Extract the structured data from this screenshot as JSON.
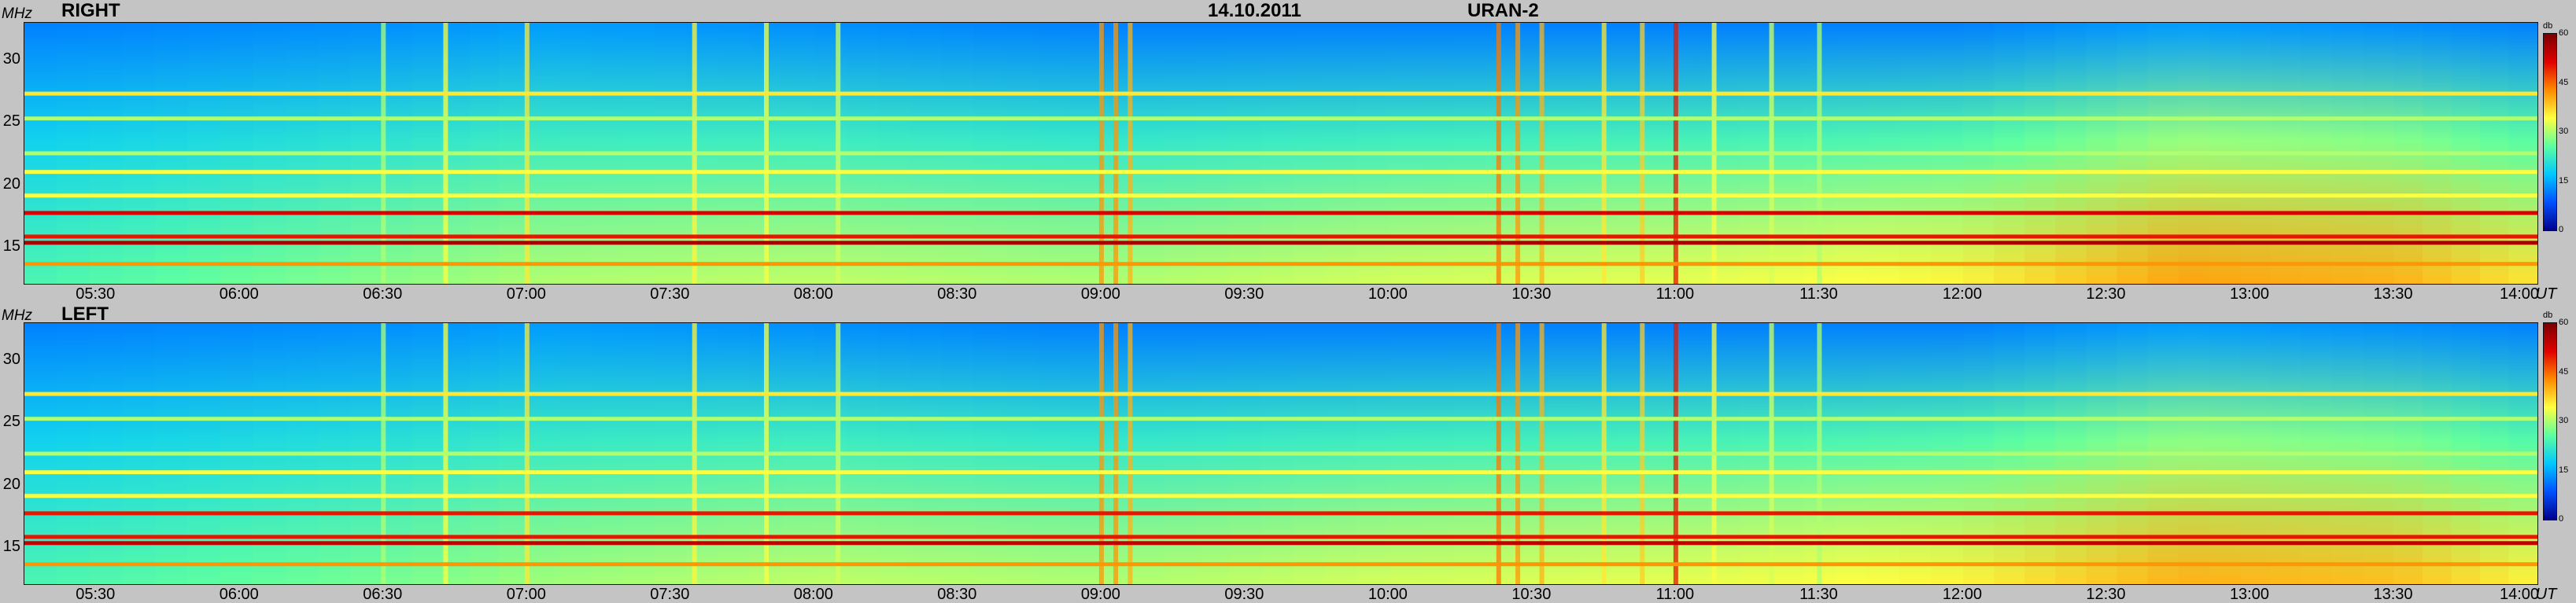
{
  "header": {
    "date": "14.10.2011",
    "instrument": "URAN-2"
  },
  "axis_unit_y": "MHz",
  "axis_unit_x": "UT",
  "colorbar_unit": "db",
  "colorbar_ticks": [
    "60",
    "45",
    "30",
    "15",
    "0"
  ],
  "colorscale": [
    "#00008a",
    "#0050ff",
    "#00c8ff",
    "#5effa0",
    "#ffff40",
    "#ff8a00",
    "#e00000",
    "#7a0000"
  ],
  "chart_data": [
    {
      "type": "heatmap",
      "title": "RIGHT",
      "xlabel": "UT",
      "ylabel": "MHz",
      "xlim": [
        "05:15",
        "14:00"
      ],
      "ylim": [
        12,
        33
      ],
      "zlim": [
        0,
        60
      ],
      "x_ticks": [
        "05:30",
        "06:00",
        "06:30",
        "07:00",
        "07:30",
        "08:00",
        "08:30",
        "09:00",
        "09:30",
        "10:00",
        "10:30",
        "11:00",
        "11:30",
        "12:00",
        "12:30",
        "13:00",
        "13:30",
        "14:00"
      ],
      "y_ticks": [
        15,
        20,
        25,
        30
      ],
      "background_by_time": [
        {
          "time": "05:15",
          "low_db": 24,
          "high_db": 12
        },
        {
          "time": "06:30",
          "low_db": 28,
          "high_db": 13
        },
        {
          "time": "07:00",
          "low_db": 30,
          "high_db": 14
        },
        {
          "time": "08:00",
          "low_db": 31,
          "high_db": 13
        },
        {
          "time": "09:00",
          "low_db": 30,
          "high_db": 12
        },
        {
          "time": "10:00",
          "low_db": 32,
          "high_db": 12
        },
        {
          "time": "11:00",
          "low_db": 33,
          "high_db": 12
        },
        {
          "time": "12:00",
          "low_db": 35,
          "high_db": 12
        },
        {
          "time": "12:45",
          "low_db": 41,
          "high_db": 14
        },
        {
          "time": "13:30",
          "low_db": 40,
          "high_db": 13
        },
        {
          "time": "14:00",
          "low_db": 36,
          "high_db": 12
        }
      ],
      "interference_bands_mhz": [
        {
          "mhz": 15.3,
          "db": 56
        },
        {
          "mhz": 15.8,
          "db": 50
        },
        {
          "mhz": 17.7,
          "db": 52
        },
        {
          "mhz": 13.6,
          "db": 42
        },
        {
          "mhz": 21.0,
          "db": 34
        },
        {
          "mhz": 27.3,
          "db": 36
        },
        {
          "mhz": 25.3,
          "db": 30
        },
        {
          "mhz": 22.5,
          "db": 30
        },
        {
          "mhz": 19.1,
          "db": 34
        }
      ],
      "broadband_bursts": [
        {
          "time": "06:30",
          "db": 30
        },
        {
          "time": "06:43",
          "db": 34
        },
        {
          "time": "07:00",
          "db": 36
        },
        {
          "time": "07:35",
          "db": 35
        },
        {
          "time": "07:50",
          "db": 34
        },
        {
          "time": "08:05",
          "db": 32
        },
        {
          "time": "09:00",
          "db": 42
        },
        {
          "time": "09:03",
          "db": 42
        },
        {
          "time": "09:06",
          "db": 40
        },
        {
          "time": "10:23",
          "db": 44
        },
        {
          "time": "10:27",
          "db": 42
        },
        {
          "time": "10:32",
          "db": 40
        },
        {
          "time": "10:45",
          "db": 36
        },
        {
          "time": "10:53",
          "db": 38
        },
        {
          "time": "11:00",
          "db": 50
        },
        {
          "time": "11:08",
          "db": 34
        },
        {
          "time": "11:20",
          "db": 32
        },
        {
          "time": "11:30",
          "db": 30
        }
      ]
    },
    {
      "type": "heatmap",
      "title": "LEFT",
      "xlabel": "UT",
      "ylabel": "MHz",
      "xlim": [
        "05:15",
        "14:00"
      ],
      "ylim": [
        12,
        33
      ],
      "zlim": [
        0,
        60
      ],
      "x_ticks": [
        "05:30",
        "06:00",
        "06:30",
        "07:00",
        "07:30",
        "08:00",
        "08:30",
        "09:00",
        "09:30",
        "10:00",
        "10:30",
        "11:00",
        "11:30",
        "12:00",
        "12:30",
        "13:00",
        "13:30",
        "14:00"
      ],
      "y_ticks": [
        15,
        20,
        25,
        30
      ],
      "background_by_time": [
        {
          "time": "05:15",
          "low_db": 24,
          "high_db": 12
        },
        {
          "time": "06:30",
          "low_db": 27,
          "high_db": 13
        },
        {
          "time": "07:00",
          "low_db": 29,
          "high_db": 14
        },
        {
          "time": "08:00",
          "low_db": 31,
          "high_db": 13
        },
        {
          "time": "09:00",
          "low_db": 30,
          "high_db": 12
        },
        {
          "time": "10:00",
          "low_db": 32,
          "high_db": 12
        },
        {
          "time": "11:00",
          "low_db": 33,
          "high_db": 12
        },
        {
          "time": "12:00",
          "low_db": 35,
          "high_db": 12
        },
        {
          "time": "12:45",
          "low_db": 40,
          "high_db": 14
        },
        {
          "time": "13:30",
          "low_db": 39,
          "high_db": 13
        },
        {
          "time": "14:00",
          "low_db": 35,
          "high_db": 12
        }
      ],
      "interference_bands_mhz": [
        {
          "mhz": 15.3,
          "db": 54
        },
        {
          "mhz": 15.8,
          "db": 50
        },
        {
          "mhz": 17.7,
          "db": 50
        },
        {
          "mhz": 13.6,
          "db": 42
        },
        {
          "mhz": 21.0,
          "db": 34
        },
        {
          "mhz": 27.3,
          "db": 36
        },
        {
          "mhz": 25.3,
          "db": 30
        },
        {
          "mhz": 22.5,
          "db": 30
        },
        {
          "mhz": 19.1,
          "db": 34
        }
      ],
      "broadband_bursts": [
        {
          "time": "06:30",
          "db": 30
        },
        {
          "time": "06:43",
          "db": 34
        },
        {
          "time": "07:00",
          "db": 36
        },
        {
          "time": "07:35",
          "db": 35
        },
        {
          "time": "07:50",
          "db": 34
        },
        {
          "time": "08:05",
          "db": 32
        },
        {
          "time": "09:00",
          "db": 42
        },
        {
          "time": "09:03",
          "db": 42
        },
        {
          "time": "09:06",
          "db": 40
        },
        {
          "time": "10:23",
          "db": 44
        },
        {
          "time": "10:27",
          "db": 42
        },
        {
          "time": "10:32",
          "db": 40
        },
        {
          "time": "10:45",
          "db": 36
        },
        {
          "time": "10:53",
          "db": 38
        },
        {
          "time": "11:00",
          "db": 50
        },
        {
          "time": "11:08",
          "db": 34
        },
        {
          "time": "11:20",
          "db": 32
        },
        {
          "time": "11:30",
          "db": 30
        }
      ]
    }
  ]
}
